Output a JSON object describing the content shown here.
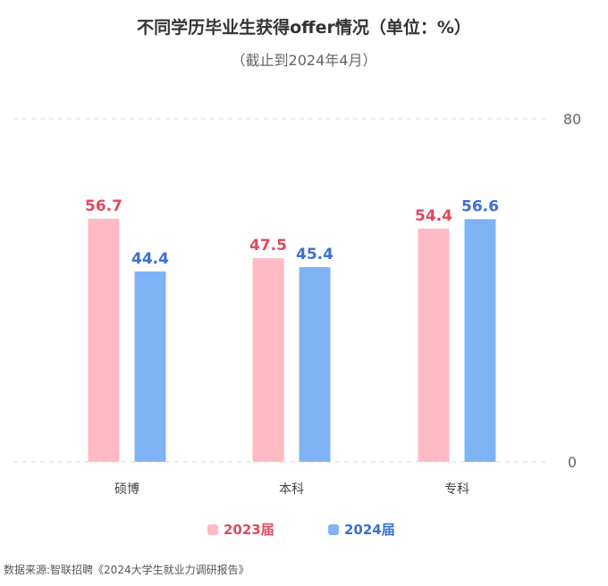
{
  "title": "不同学历毕业生获得offer情况（单位：%）",
  "subtitle": "（截止到2024年4月）",
  "source": "数据来源:智联招聘《2024大学生就业力调研报告》",
  "chart_data": {
    "type": "bar",
    "title": "不同学历毕业生获得offer情况（单位：%）",
    "subtitle": "（截止到2024年4月）",
    "categories": [
      "硕博",
      "本科",
      "专科"
    ],
    "series": [
      {
        "name": "2023届",
        "values": [
          56.7,
          47.5,
          54.4
        ],
        "color": "#FFBAC4",
        "label_color": "#E0485C"
      },
      {
        "name": "2024届",
        "values": [
          44.4,
          45.4,
          56.6
        ],
        "color": "#80B3F5",
        "label_color": "#3A6FD4"
      }
    ],
    "ylim": [
      0,
      80
    ],
    "yticks": [
      "0",
      "80"
    ],
    "grid": true,
    "legend": "bottom"
  }
}
